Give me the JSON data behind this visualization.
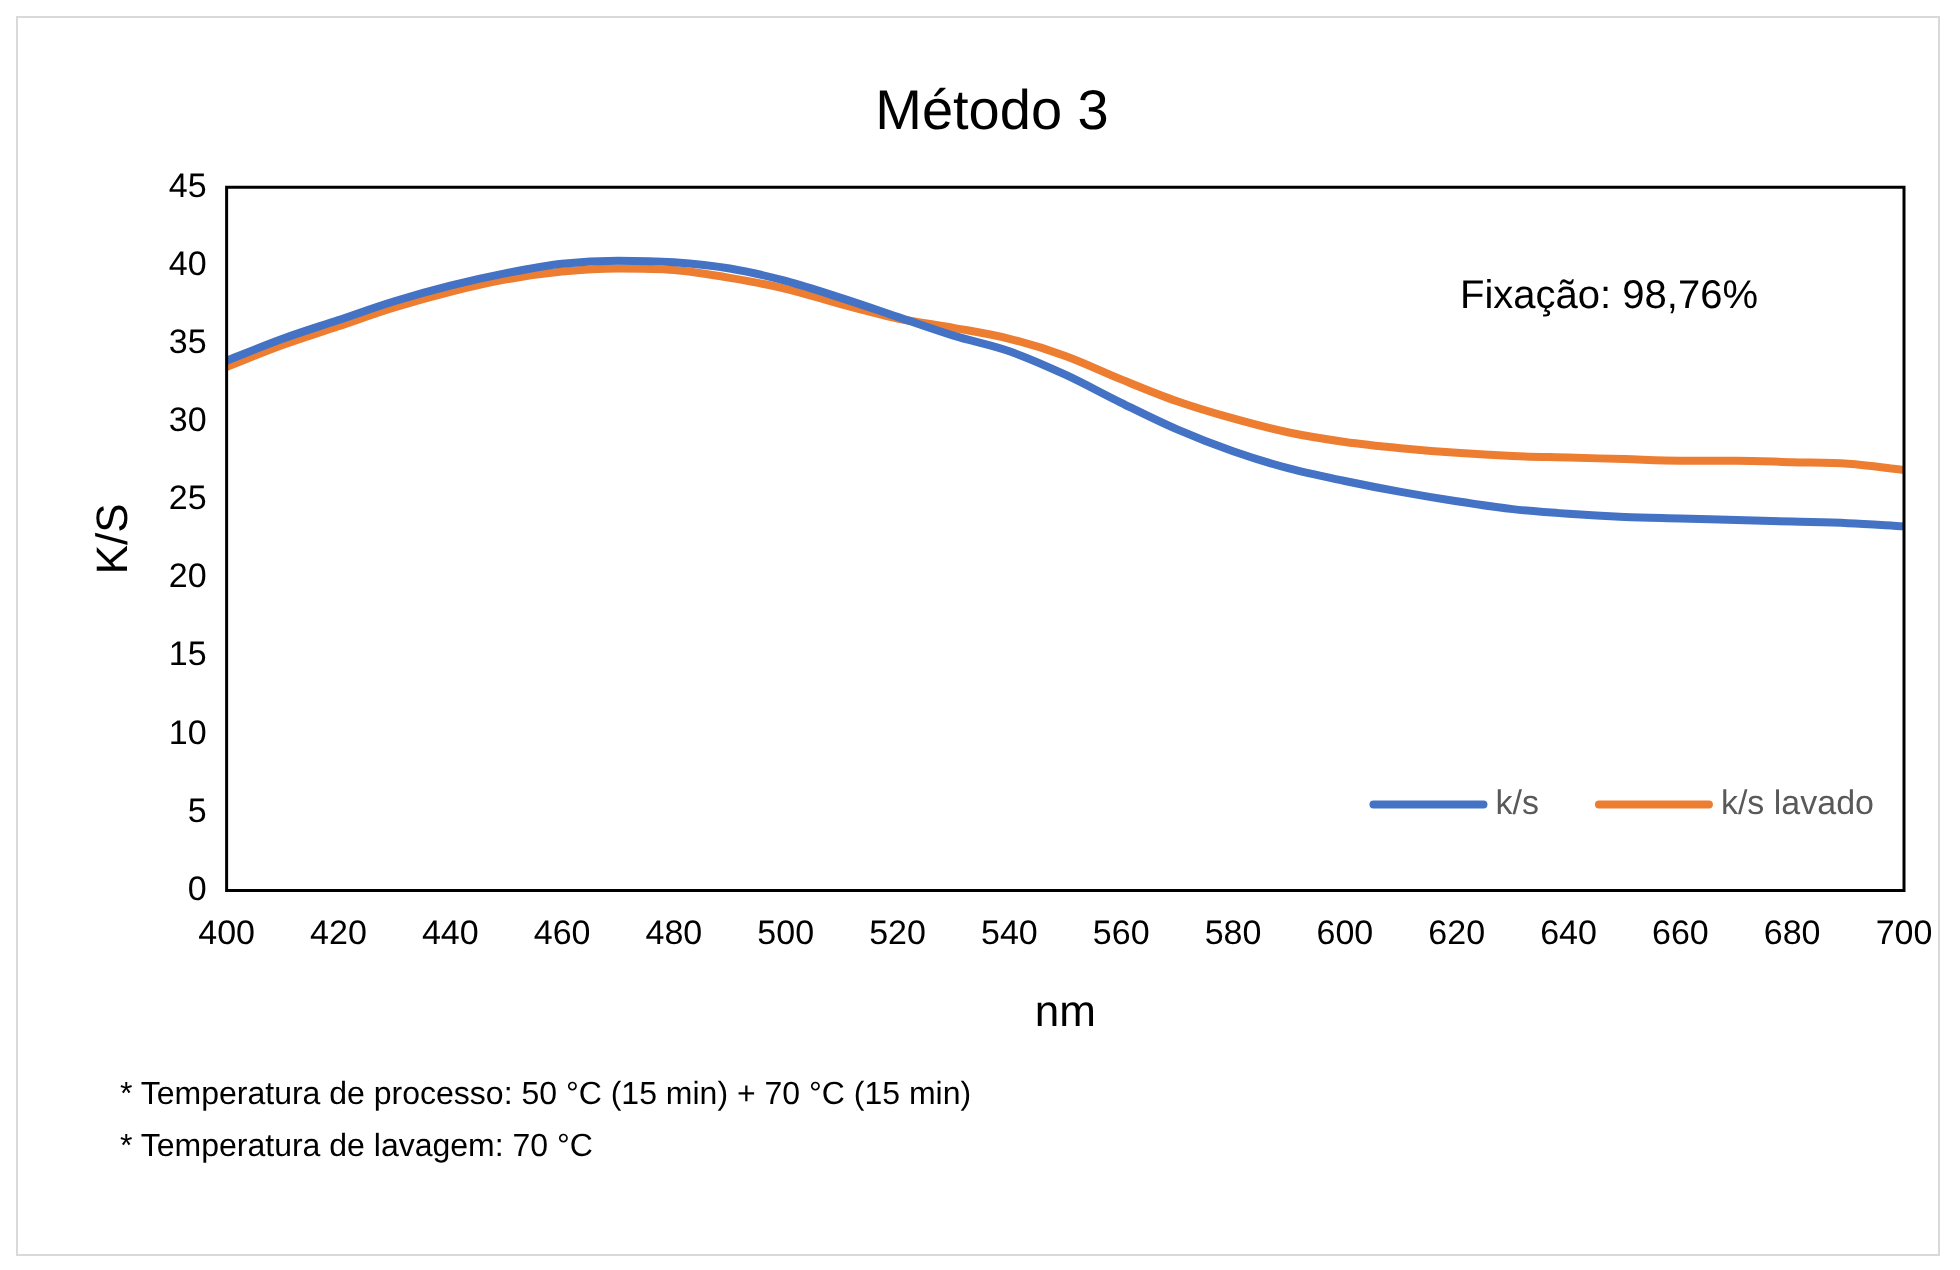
{
  "chart_data": {
    "type": "line",
    "title": "Método 3",
    "xlabel": "nm",
    "ylabel": "K/S",
    "x": [
      400,
      410,
      420,
      430,
      440,
      450,
      460,
      470,
      480,
      490,
      500,
      510,
      520,
      530,
      540,
      550,
      560,
      570,
      580,
      590,
      600,
      610,
      620,
      630,
      640,
      650,
      660,
      670,
      680,
      690,
      700
    ],
    "series": [
      {
        "name": "k/s",
        "color": "#4472c4",
        "values": [
          33.9,
          35.3,
          36.5,
          37.7,
          38.7,
          39.5,
          40.1,
          40.3,
          40.2,
          39.8,
          39.0,
          37.9,
          36.7,
          35.5,
          34.5,
          33.0,
          31.2,
          29.5,
          28.1,
          27.0,
          26.2,
          25.5,
          24.9,
          24.4,
          24.1,
          23.9,
          23.8,
          23.7,
          23.6,
          23.5,
          23.3
        ]
      },
      {
        "name": "k/s lavado",
        "color": "#ed7d31",
        "values": [
          33.5,
          34.9,
          36.1,
          37.3,
          38.3,
          39.1,
          39.6,
          39.8,
          39.7,
          39.2,
          38.5,
          37.5,
          36.6,
          36.0,
          35.3,
          34.2,
          32.7,
          31.3,
          30.2,
          29.3,
          28.7,
          28.3,
          28.0,
          27.8,
          27.7,
          27.6,
          27.5,
          27.5,
          27.4,
          27.3,
          26.9
        ]
      }
    ],
    "xlim": [
      400,
      700
    ],
    "xticks": [
      400,
      420,
      440,
      460,
      480,
      500,
      520,
      540,
      560,
      580,
      600,
      620,
      640,
      660,
      680,
      700
    ],
    "ylim": [
      0,
      45
    ],
    "yticks": [
      0,
      5,
      10,
      15,
      20,
      25,
      30,
      35,
      40,
      45
    ],
    "grid": false,
    "legend": "bottom right",
    "marker": "none",
    "line_style": "solid",
    "annotations": [
      "Fixação: 98,76%",
      "* Temperatura de processo: 50 °C (15 min) +  70 °C (15 min)",
      "* Temperatura de lavagem: 70 °C"
    ]
  }
}
